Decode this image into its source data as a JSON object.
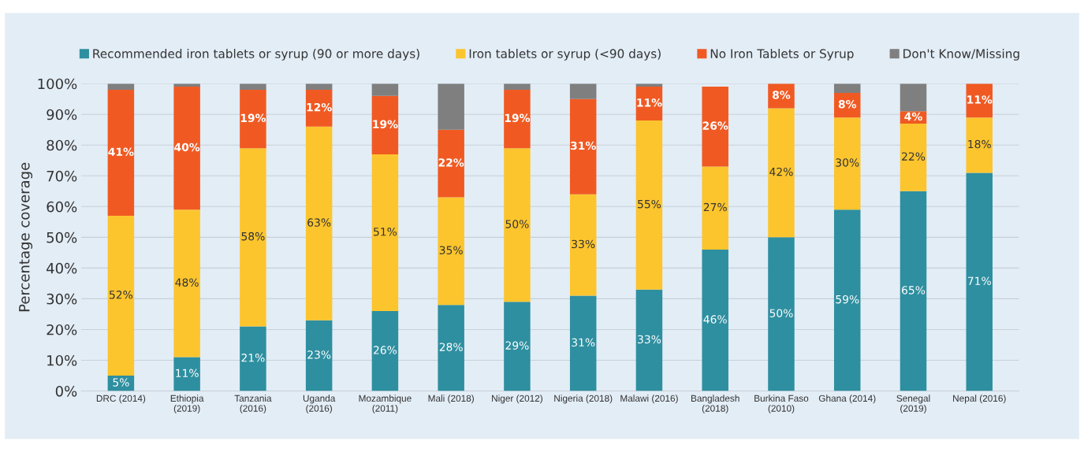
{
  "chart_data": {
    "type": "bar",
    "stacked": true,
    "ylabel": "Percentage coverage",
    "categories": [
      "DRC (2014)",
      "Ethiopia\n(2019)",
      "Tanzania\n(2016)",
      "Uganda\n(2016)",
      "Mozambique\n(2011)",
      "Mali (2018)",
      "Niger (2012)",
      "Nigeria (2018)",
      "Malawi (2016)",
      "Bangladesh\n(2018)",
      "Burkina Faso\n(2010)",
      "Ghana (2014)",
      "Senegal\n(2019)",
      "Nepal (2016)"
    ],
    "series": [
      {
        "name": "Recommended iron tablets or syrup (90 or more days)",
        "color": "#2e8fa0",
        "values": [
          5,
          11,
          21,
          23,
          26,
          28,
          29,
          31,
          33,
          46,
          50,
          59,
          65,
          71
        ],
        "value_labels": [
          "5%",
          "11%",
          "21%",
          "23%",
          "26%",
          "28%",
          "29%",
          "31%",
          "33%",
          "46%",
          "50%",
          "59%",
          "65%",
          "71%"
        ]
      },
      {
        "name": "Iron tablets or syrup (<90 days)",
        "color": "#fcc52e",
        "values": [
          52,
          48,
          58,
          63,
          51,
          35,
          50,
          33,
          55,
          27,
          42,
          30,
          22,
          18
        ],
        "value_labels": [
          "52%",
          "48%",
          "58%",
          "63%",
          "51%",
          "35%",
          "50%",
          "33%",
          "55%",
          "27%",
          "42%",
          "30%",
          "22%",
          "18%"
        ]
      },
      {
        "name": "No Iron Tablets or Syrup",
        "color": "#f05a22",
        "values": [
          41,
          40,
          19,
          12,
          19,
          22,
          19,
          31,
          11,
          26,
          8,
          8,
          4,
          11
        ],
        "value_labels": [
          "41%",
          "40%",
          "19%",
          "12%",
          "19%",
          "22%",
          "19%",
          "31%",
          "11%",
          "26%",
          "8%",
          "8%",
          "4%",
          "11%"
        ]
      },
      {
        "name": "Don't Know/Missing",
        "color": "#7f7f7f",
        "values": [
          2,
          1,
          2,
          2,
          4,
          15,
          2,
          5,
          1,
          null,
          null,
          3,
          9,
          null
        ]
      }
    ],
    "ylim": [
      0,
      100
    ],
    "yticks": [
      {
        "value": 0,
        "label": "0%"
      },
      {
        "value": 10,
        "label": "10%"
      },
      {
        "value": 20,
        "label": "20%"
      },
      {
        "value": 30,
        "label": "30%"
      },
      {
        "value": 40,
        "label": "40%"
      },
      {
        "value": 50,
        "label": "50%"
      },
      {
        "value": 60,
        "label": "60%"
      },
      {
        "value": 70,
        "label": "70%"
      },
      {
        "value": 80,
        "label": "80%"
      },
      {
        "value": 90,
        "label": "90%"
      },
      {
        "value": 100,
        "label": "100%"
      }
    ],
    "grid": "y",
    "legend": "top"
  }
}
